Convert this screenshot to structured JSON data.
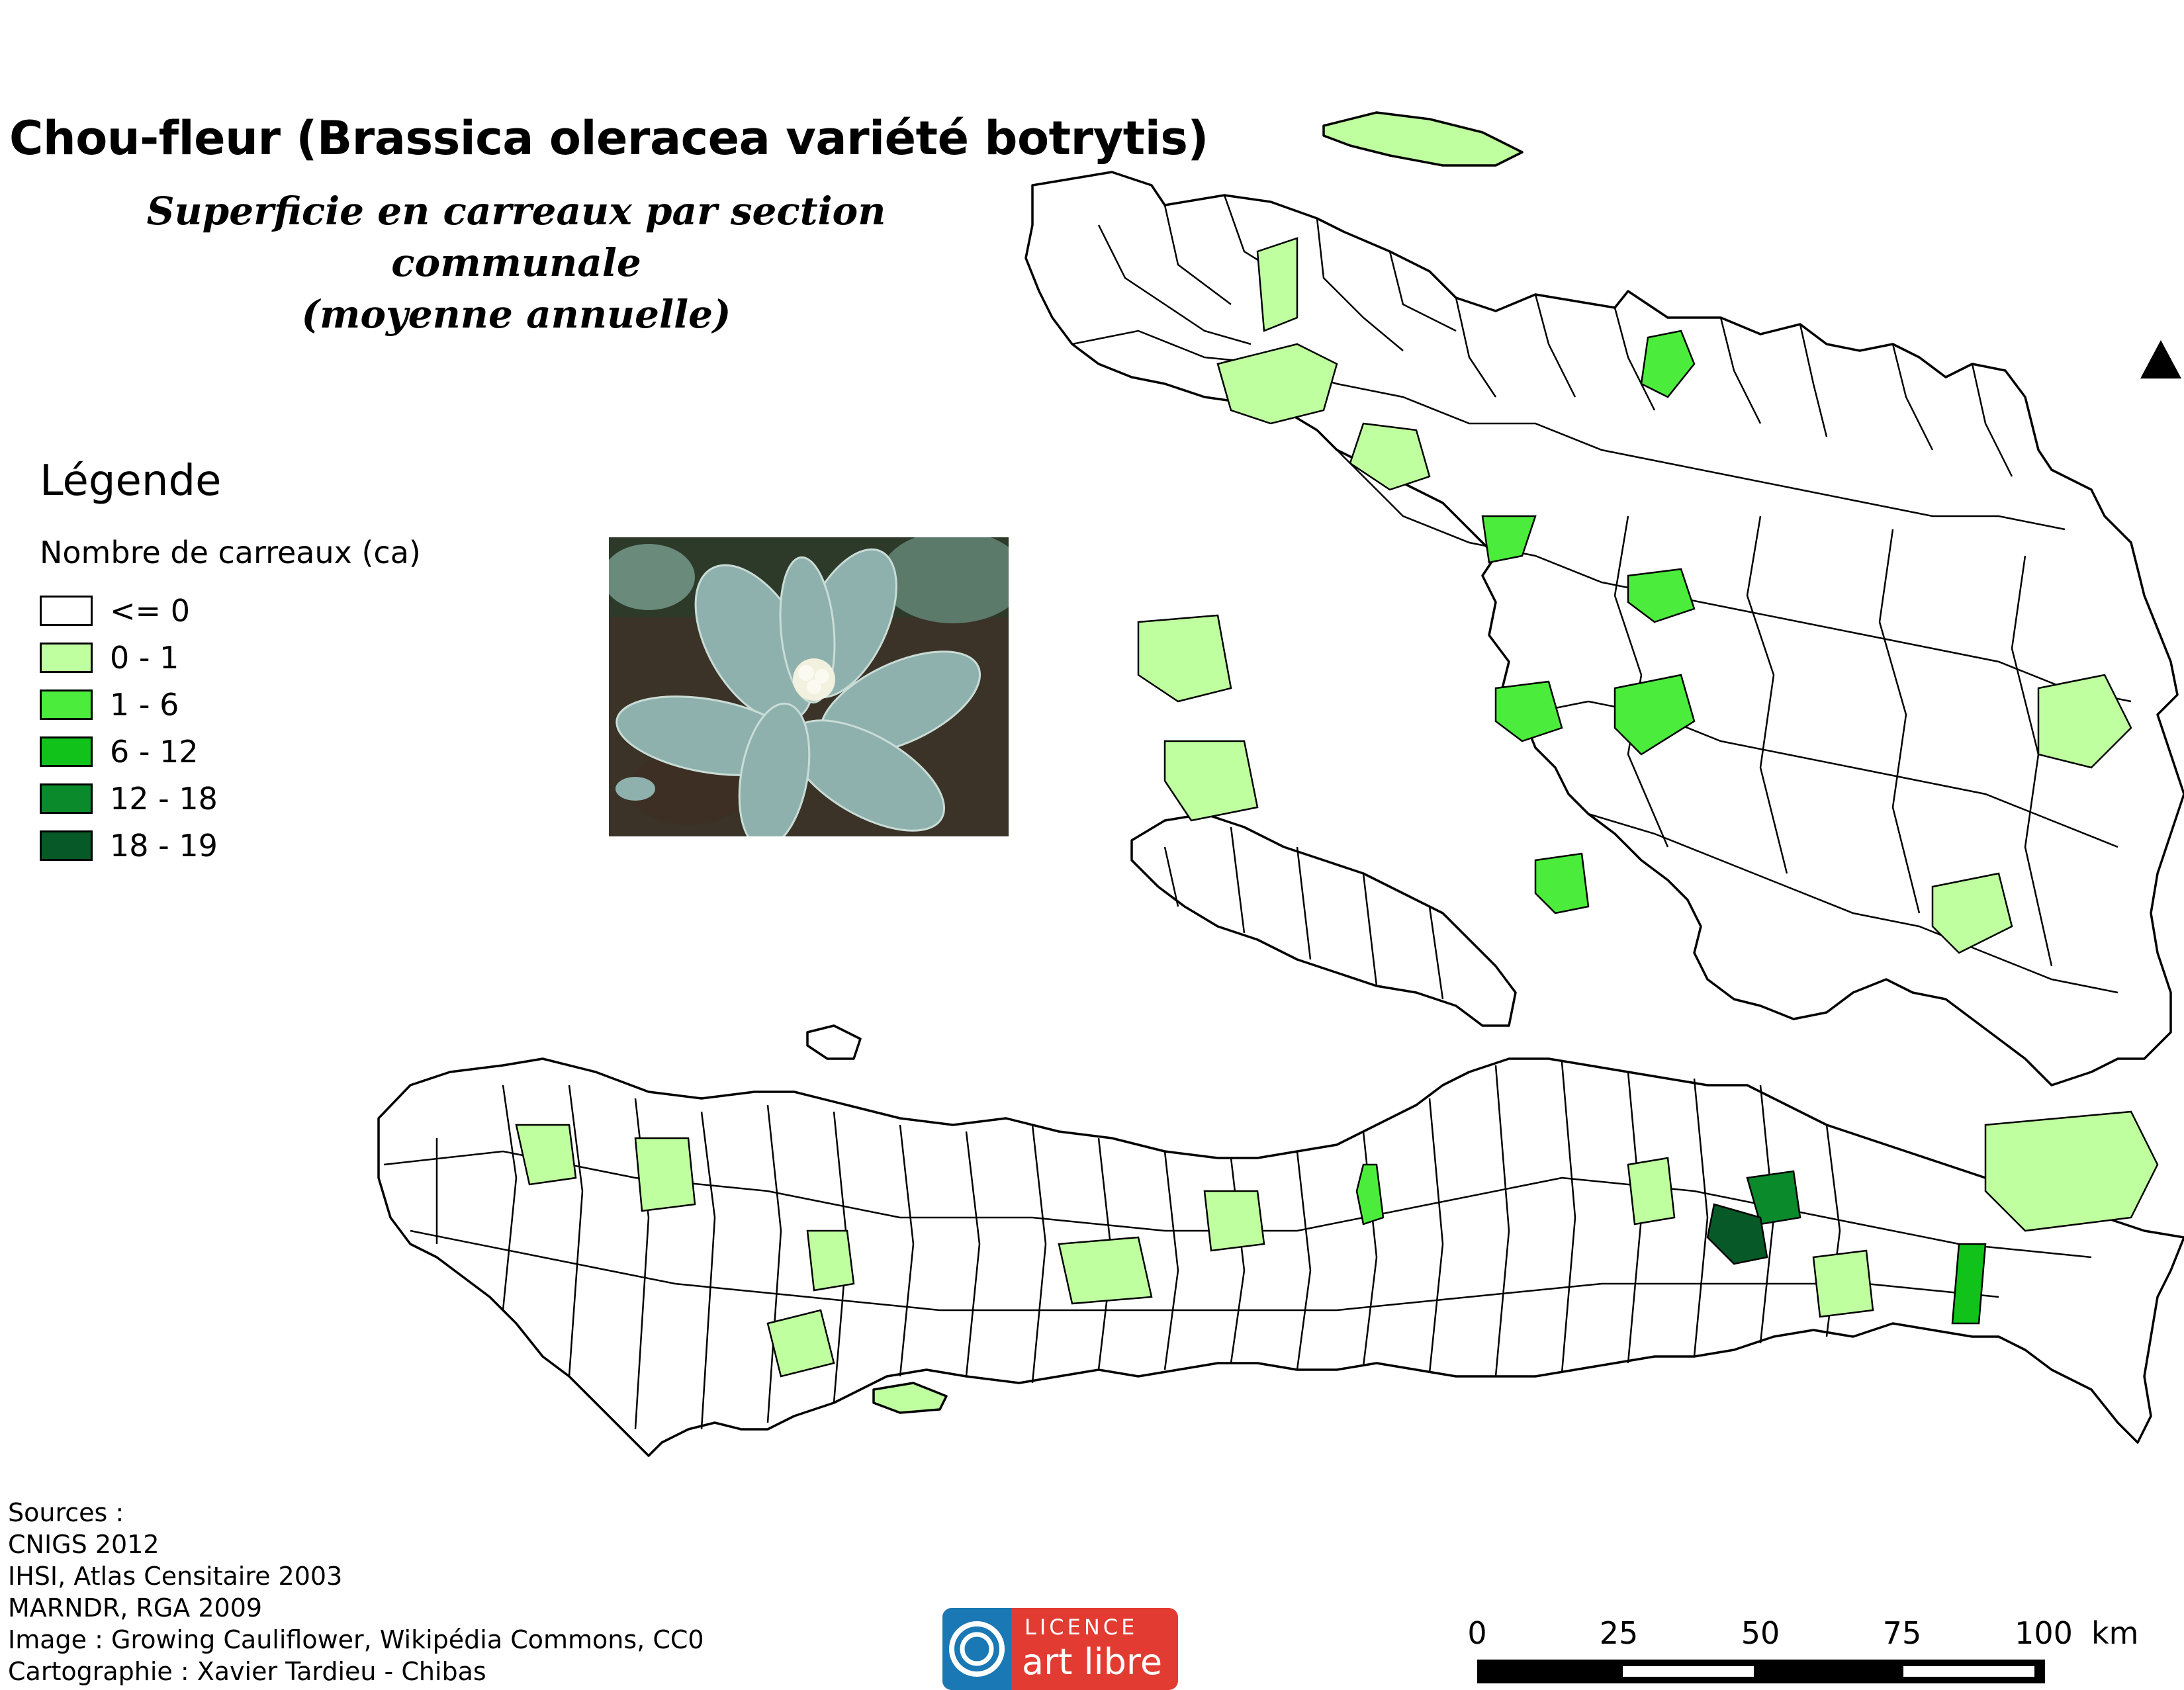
{
  "title": "Chou-fleur (Brassica oleracea variété botrytis)",
  "subtitle_line1": "Superficie en carreaux par section communale",
  "subtitle_line2": "(moyenne annuelle)",
  "legend": {
    "title": "Légende",
    "subtitle": "Nombre de carreaux (ca)",
    "classes": [
      {
        "label": "<= 0",
        "color": "#ffffff"
      },
      {
        "label": "0 - 1",
        "color": "#bfff9f"
      },
      {
        "label": "1 - 6",
        "color": "#4cec3c"
      },
      {
        "label": "6 - 12",
        "color": "#10c21a"
      },
      {
        "label": "12 - 18",
        "color": "#0a8a2a"
      },
      {
        "label": "18 - 19",
        "color": "#075a27"
      }
    ]
  },
  "photo": {
    "icon": "cauliflower-photo"
  },
  "sources": [
    "Sources :",
    "CNIGS 2012",
    "IHSI, Atlas Censitaire 2003",
    "MARNDR, RGA 2009",
    "Image : Growing Cauliflower, Wikipédia Commons, CC0",
    "Cartographie : Xavier Tardieu - Chibas"
  ],
  "logo": {
    "line1": "LICENCE",
    "line2": "art libre",
    "accent": "#1a78b4",
    "bg": "#e23b32"
  },
  "scale": {
    "ticks": [
      "0",
      "25",
      "50",
      "75",
      "100"
    ],
    "unit": "km"
  },
  "north_arrow": {
    "icon": "north-arrow-icon"
  }
}
